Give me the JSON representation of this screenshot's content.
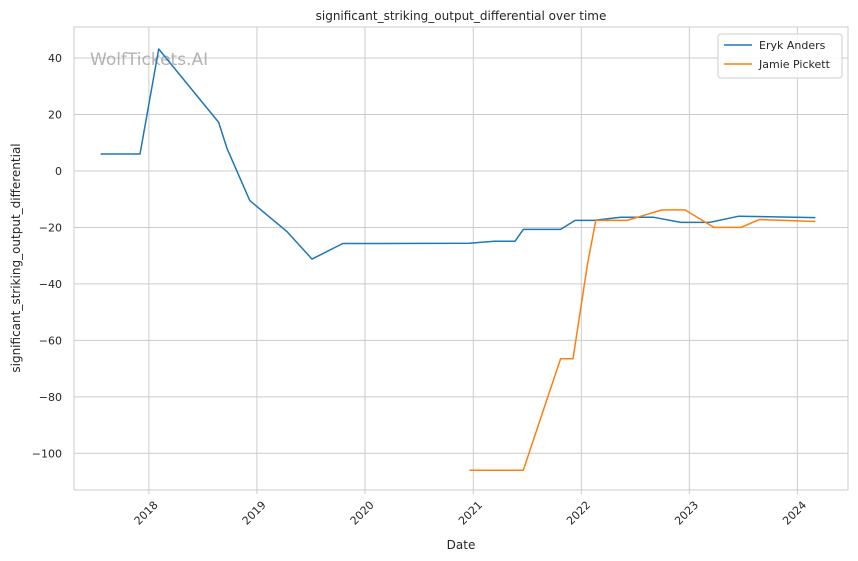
{
  "chart_data": {
    "type": "line",
    "title": "significant_striking_output_differential over time",
    "xlabel": "Date",
    "ylabel": "significant_striking_output_differential",
    "watermark": "WolfTickets.AI",
    "x_ticks": [
      "2018",
      "2019",
      "2020",
      "2021",
      "2022",
      "2023",
      "2024"
    ],
    "y_ticks": [
      "40",
      "20",
      "0",
      "−20",
      "−40",
      "−60",
      "−80",
      "−100"
    ],
    "xlim": [
      "2017-04-23",
      "2024-06-20"
    ],
    "ylim": [
      -113,
      51
    ],
    "grid": true,
    "legend_position": "top-right",
    "series": [
      {
        "name": "Eryk Anders",
        "color": "#1f77b4",
        "points": [
          [
            "2017-07-22",
            6.0
          ],
          [
            "2017-12-02",
            6.0
          ],
          [
            "2018-02-03",
            43.2
          ],
          [
            "2018-08-25",
            17.2
          ],
          [
            "2018-09-22",
            8.0
          ],
          [
            "2018-12-08",
            -10.5
          ],
          [
            "2019-04-13",
            -21.5
          ],
          [
            "2019-07-06",
            -31.2
          ],
          [
            "2019-10-18",
            -25.7
          ],
          [
            "2020-12-19",
            -25.6
          ],
          [
            "2021-03-13",
            -24.9
          ],
          [
            "2021-05-22",
            -24.9
          ],
          [
            "2021-06-19",
            -20.7
          ],
          [
            "2021-10-23",
            -20.7
          ],
          [
            "2021-12-11",
            -17.5
          ],
          [
            "2022-02-12",
            -17.5
          ],
          [
            "2022-05-14",
            -16.4
          ],
          [
            "2022-09-03",
            -16.4
          ],
          [
            "2022-12-03",
            -18.2
          ],
          [
            "2023-03-11",
            -18.2
          ],
          [
            "2023-06-17",
            -16.0
          ],
          [
            "2024-03-02",
            -16.5
          ]
        ]
      },
      {
        "name": "Jamie Pickett",
        "color": "#ff7f0e",
        "points": [
          [
            "2020-12-19",
            -106.0
          ],
          [
            "2021-06-19",
            -106.0
          ],
          [
            "2021-10-23",
            -66.5
          ],
          [
            "2021-12-04",
            -66.5
          ],
          [
            "2022-01-22",
            -33.0
          ],
          [
            "2022-02-19",
            -17.5
          ],
          [
            "2022-06-04",
            -17.5
          ],
          [
            "2022-10-01",
            -13.8
          ],
          [
            "2022-12-17",
            -13.8
          ],
          [
            "2023-03-25",
            -20.0
          ],
          [
            "2023-06-24",
            -20.0
          ],
          [
            "2023-08-26",
            -17.2
          ],
          [
            "2024-03-02",
            -17.9
          ]
        ]
      }
    ]
  }
}
